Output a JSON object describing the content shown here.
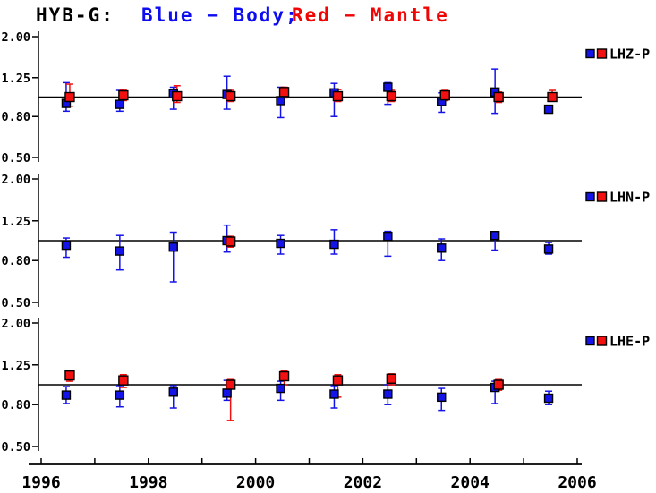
{
  "title": {
    "segments": [
      {
        "text": "HYB-G:",
        "color": "#000000"
      },
      {
        "text": "Blue − Body;",
        "color": "#0d0df0"
      },
      {
        "text": "Red − Mantle",
        "color": "#f00505"
      }
    ]
  },
  "chart_data": {
    "type": "scatter",
    "subtype": "error-bar-time-series",
    "title": "HYB-G: Blue - Body; Red - Mantle",
    "y_scale": "log",
    "y_tick_labels": [
      "2.00",
      "1.25",
      "0.80",
      "0.50"
    ],
    "y_tick_values": [
      2.0,
      1.25,
      0.8,
      0.5
    ],
    "reference_line": 1.0,
    "x_range": [
      1996,
      2006
    ],
    "x_tick_years": [
      1996,
      1997,
      1998,
      1999,
      2000,
      2001,
      2002,
      2003,
      2004,
      2005,
      2006
    ],
    "x_label_years": [
      "1996",
      "1998",
      "2000",
      "2002",
      "2004",
      "2006"
    ],
    "legend_position": "right",
    "colors": {
      "body": "#1414e8",
      "mantle": "#f21010",
      "axis": "#000000"
    },
    "series_meaning": {
      "body": "Blue − Body",
      "mantle": "Red − Mantle"
    },
    "panels": [
      {
        "legend": "LHZ-P",
        "points": [
          {
            "year": 1996.5,
            "body": {
              "v": 0.93,
              "lo": 0.85,
              "hi": 1.18
            },
            "mantle": {
              "v": 1.0,
              "lo": 0.9,
              "hi": 1.16
            }
          },
          {
            "year": 1997.5,
            "body": {
              "v": 0.92,
              "lo": 0.85,
              "hi": 1.08
            },
            "mantle": {
              "v": 1.02,
              "lo": 0.96,
              "hi": 1.09
            }
          },
          {
            "year": 1998.5,
            "body": {
              "v": 1.04,
              "lo": 0.87,
              "hi": 1.12
            },
            "mantle": {
              "v": 1.01,
              "lo": 0.94,
              "hi": 1.14
            }
          },
          {
            "year": 1999.5,
            "body": {
              "v": 1.03,
              "lo": 0.87,
              "hi": 1.27
            },
            "mantle": {
              "v": 1.01,
              "lo": 0.95,
              "hi": 1.08
            }
          },
          {
            "year": 2000.5,
            "body": {
              "v": 0.96,
              "lo": 0.79,
              "hi": 1.12
            },
            "mantle": {
              "v": 1.06,
              "lo": 0.99,
              "hi": 1.12
            }
          },
          {
            "year": 2001.5,
            "body": {
              "v": 1.05,
              "lo": 0.8,
              "hi": 1.17
            },
            "mantle": {
              "v": 1.01,
              "lo": 0.95,
              "hi": 1.09
            }
          },
          {
            "year": 2002.5,
            "body": {
              "v": 1.12,
              "lo": 0.92,
              "hi": 1.18
            },
            "mantle": {
              "v": 1.01,
              "lo": 0.95,
              "hi": 1.08
            }
          },
          {
            "year": 2003.5,
            "body": {
              "v": 0.95,
              "lo": 0.84,
              "hi": 1.05
            },
            "mantle": {
              "v": 1.02,
              "lo": 0.96,
              "hi": 1.08
            }
          },
          {
            "year": 2004.5,
            "body": {
              "v": 1.06,
              "lo": 0.83,
              "hi": 1.38
            },
            "mantle": {
              "v": 1.0,
              "lo": 0.94,
              "hi": 1.06
            }
          },
          {
            "year": 2005.5,
            "body": {
              "v": 0.87,
              "lo": null,
              "hi": null
            },
            "mantle": {
              "v": 1.0,
              "lo": 0.96,
              "hi": 1.08
            }
          }
        ]
      },
      {
        "legend": "LHN-P",
        "points": [
          {
            "year": 1996.5,
            "body": {
              "v": 0.95,
              "lo": 0.83,
              "hi": 1.03
            },
            "mantle": null
          },
          {
            "year": 1997.5,
            "body": {
              "v": 0.89,
              "lo": 0.72,
              "hi": 1.06
            },
            "mantle": null
          },
          {
            "year": 1998.5,
            "body": {
              "v": 0.93,
              "lo": 0.63,
              "hi": 1.1
            },
            "mantle": null
          },
          {
            "year": 1999.5,
            "body": {
              "v": 1.0,
              "lo": 0.88,
              "hi": 1.19
            },
            "mantle": {
              "v": 0.99,
              "lo": 0.93,
              "hi": 1.05
            }
          },
          {
            "year": 2000.5,
            "body": {
              "v": 0.97,
              "lo": 0.86,
              "hi": 1.06
            },
            "mantle": null
          },
          {
            "year": 2001.5,
            "body": {
              "v": 0.96,
              "lo": 0.86,
              "hi": 1.13
            },
            "mantle": null
          },
          {
            "year": 2002.5,
            "body": {
              "v": 1.05,
              "lo": 0.84,
              "hi": 1.11
            },
            "mantle": null
          },
          {
            "year": 2003.5,
            "body": {
              "v": 0.92,
              "lo": 0.8,
              "hi": 1.02
            },
            "mantle": null
          },
          {
            "year": 2004.5,
            "body": {
              "v": 1.06,
              "lo": 0.9,
              "hi": 1.09
            },
            "mantle": null
          },
          {
            "year": 2005.5,
            "body": {
              "v": 0.91,
              "lo": 0.86,
              "hi": 0.98
            },
            "mantle": null
          }
        ]
      },
      {
        "legend": "LHE-P",
        "points": [
          {
            "year": 1996.5,
            "body": {
              "v": 0.89,
              "lo": 0.81,
              "hi": 0.98
            },
            "mantle": {
              "v": 1.11,
              "lo": 1.04,
              "hi": 1.17
            }
          },
          {
            "year": 1997.5,
            "body": {
              "v": 0.89,
              "lo": 0.78,
              "hi": 0.99
            },
            "mantle": {
              "v": 1.05,
              "lo": 0.97,
              "hi": 1.12
            }
          },
          {
            "year": 1998.5,
            "body": {
              "v": 0.92,
              "lo": 0.77,
              "hi": 0.99
            },
            "mantle": null
          },
          {
            "year": 1999.5,
            "body": {
              "v": 0.91,
              "lo": 0.84,
              "hi": 1.05
            },
            "mantle": {
              "v": 1.0,
              "lo": 0.67,
              "hi": 1.06
            }
          },
          {
            "year": 2000.5,
            "body": {
              "v": 0.96,
              "lo": 0.84,
              "hi": 1.04
            },
            "mantle": {
              "v": 1.1,
              "lo": 1.0,
              "hi": 1.17
            }
          },
          {
            "year": 2001.5,
            "body": {
              "v": 0.9,
              "lo": 0.77,
              "hi": 0.99
            },
            "mantle": {
              "v": 1.05,
              "lo": 0.87,
              "hi": 1.12
            }
          },
          {
            "year": 2002.5,
            "body": {
              "v": 0.9,
              "lo": 0.8,
              "hi": 1.0
            },
            "mantle": {
              "v": 1.07,
              "lo": 1.0,
              "hi": 1.13
            }
          },
          {
            "year": 2003.5,
            "body": {
              "v": 0.87,
              "lo": 0.75,
              "hi": 0.96
            },
            "mantle": null
          },
          {
            "year": 2004.5,
            "body": {
              "v": 0.97,
              "lo": 0.81,
              "hi": 1.04
            },
            "mantle": {
              "v": 1.0,
              "lo": 0.94,
              "hi": 1.06
            }
          },
          {
            "year": 2005.5,
            "body": {
              "v": 0.86,
              "lo": 0.8,
              "hi": 0.93
            },
            "mantle": null
          }
        ]
      }
    ]
  }
}
